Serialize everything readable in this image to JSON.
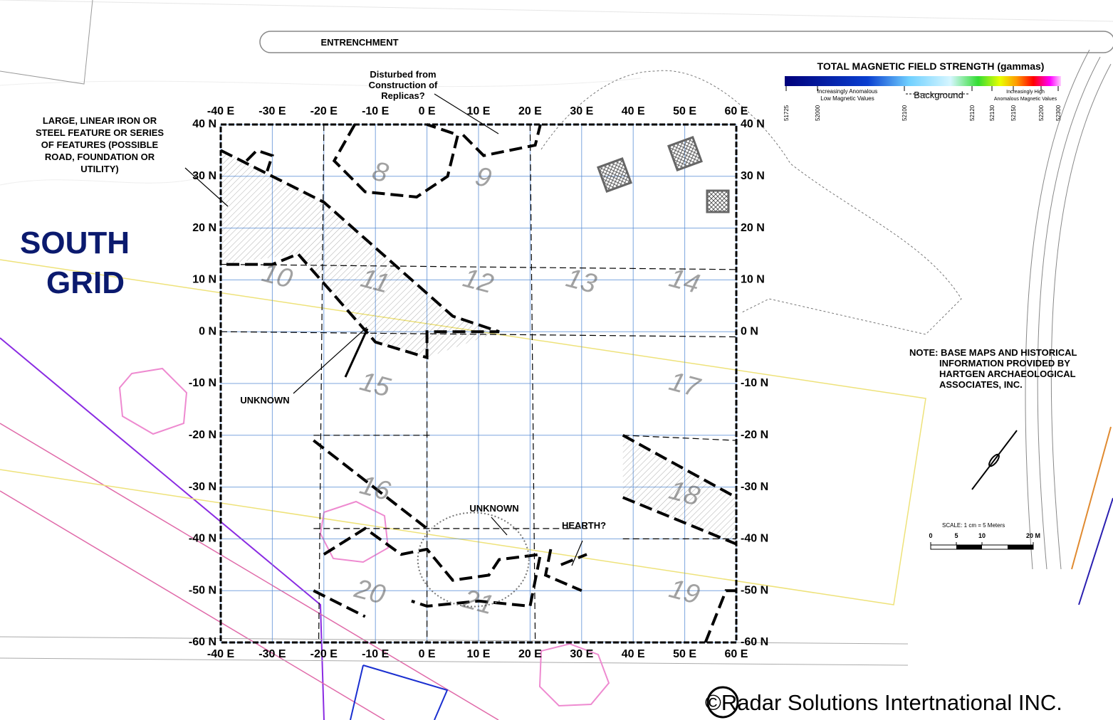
{
  "title_lines": [
    "SOUTH",
    "GRID"
  ],
  "annotations": {
    "entrenchment": [
      "ENTRENCHMENT"
    ],
    "disturbed": [
      "Disturbed from",
      "Construction of",
      "Replicas?"
    ],
    "linear_feature": [
      "LARGE, LINEAR IRON OR",
      "STEEL FEATURE OR SERIES",
      "OF FEATURES (POSSIBLE",
      "ROAD, FOUNDATION OR",
      "UTILITY)"
    ],
    "unknown_left": [
      "UNKNOWN"
    ],
    "unknown_bottom": [
      "UNKNOWN"
    ],
    "hearth": [
      "HEARTH?"
    ],
    "note": [
      "NOTE: BASE MAPS AND HISTORICAL",
      "INFORMATION PROVIDED BY",
      "HARTGEN ARCHAEOLOGICAL",
      "ASSOCIATES, INC."
    ]
  },
  "legend": {
    "title": "TOTAL MAGNETIC FIELD STRENGTH (gammas)",
    "low": [
      "Increasingly Anomalous",
      "Low Magnetic Values"
    ],
    "background": "Background",
    "high": [
      "Increasingly High",
      "Anomalous Magnetic Values"
    ],
    "ticks": [
      51725,
      52000,
      52100,
      52120,
      52130,
      52150,
      52200,
      52300
    ]
  },
  "x_ticks": [
    {
      "value": -40,
      "label": "-40 E"
    },
    {
      "value": -30,
      "label": "-30 E"
    },
    {
      "value": -20,
      "label": "-20 E"
    },
    {
      "value": -10,
      "label": "-10 E"
    },
    {
      "value": 0,
      "label": "0 E"
    },
    {
      "value": 10,
      "label": "10 E"
    },
    {
      "value": 20,
      "label": "20 E"
    },
    {
      "value": 30,
      "label": "30 E"
    },
    {
      "value": 40,
      "label": "40 E"
    },
    {
      "value": 50,
      "label": "50 E"
    },
    {
      "value": 60,
      "label": "60 E"
    }
  ],
  "y_ticks": [
    {
      "value": 40,
      "label": "40 N"
    },
    {
      "value": 30,
      "label": "30 N"
    },
    {
      "value": 20,
      "label": "20 N"
    },
    {
      "value": 10,
      "label": "10 N"
    },
    {
      "value": 0,
      "label": "0 N"
    },
    {
      "value": -10,
      "label": "-10 N"
    },
    {
      "value": -20,
      "label": "-20 N"
    },
    {
      "value": -30,
      "label": "-30 N"
    },
    {
      "value": -40,
      "label": "-40 N"
    },
    {
      "value": -50,
      "label": "-50 N"
    },
    {
      "value": -60,
      "label": "-60 N"
    }
  ],
  "grid_units": [
    "8",
    "9",
    "10",
    "11",
    "12",
    "13",
    "14",
    "15",
    "16",
    "17",
    "18",
    "19",
    "20",
    "21"
  ],
  "scale": {
    "label": "SCALE: 1 cm = 5 Meters",
    "ticks": [
      0,
      5,
      10,
      {
        "value": 20,
        "label": "20 M"
      }
    ]
  },
  "copyright": "©Radar Solutions Intertnational INC."
}
